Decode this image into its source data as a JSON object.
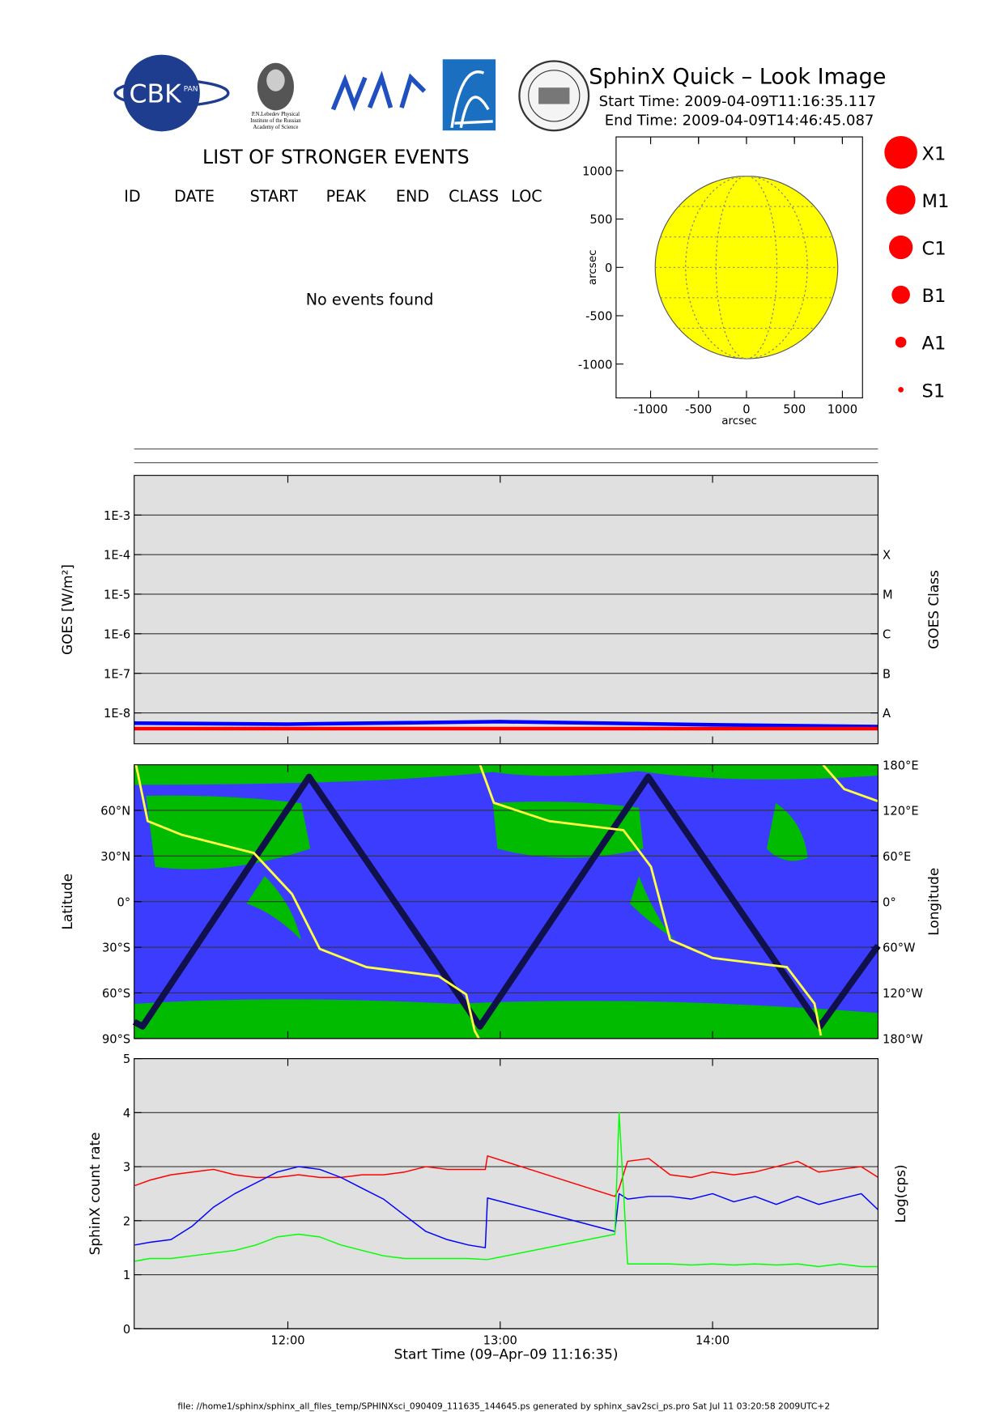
{
  "header": {
    "title": "SphinX Quick – Look Image",
    "start_time": "Start Time: 2009-04-09T11:16:35.117",
    "end_time": "End Time: 2009-04-09T14:46:45.087",
    "logo_texts": [
      "CBK",
      "PAN",
      "P.N.Lebedev Physical",
      "Institute of the Russian",
      "Academy of Science"
    ]
  },
  "events": {
    "title": "LIST OF STRONGER EVENTS",
    "columns": [
      "ID",
      "DATE",
      "START",
      "PEAK",
      "END",
      "CLASS",
      "LOC"
    ],
    "message": "No events found"
  },
  "classes": [
    "X1",
    "M1",
    "C1",
    "B1",
    "A1",
    "S1"
  ],
  "chart_data": [
    {
      "type": "disk",
      "xlim": [
        -1360,
        1210
      ],
      "ylim": [
        -1350,
        1350
      ],
      "xticks": [
        -1000,
        -500,
        0,
        500,
        1000
      ],
      "yticks": [
        -1000,
        -500,
        0,
        500,
        1000
      ],
      "xlabel": "arcsec",
      "ylabel": "arcsec",
      "radius": 952,
      "color": "#ffff00"
    },
    {
      "type": "line",
      "log_y": true,
      "background": "#e0e0e0",
      "grid": true,
      "xlim": [
        11.2764,
        14.7792
      ],
      "xticks": [
        12,
        13,
        14
      ],
      "ylim": [
        1.66e-09,
        0.01
      ],
      "yticks": [
        {
          "value": 1e-08,
          "label": "1E-8"
        },
        {
          "value": 1e-07,
          "label": "1E-7"
        },
        {
          "value": 1e-06,
          "label": "1E-6"
        },
        {
          "value": 1e-05,
          "label": "1E-5"
        },
        {
          "value": 0.0001,
          "label": "1E-4"
        },
        {
          "value": 0.001,
          "label": "1E-3"
        }
      ],
      "y2lim": [
        1.66e-09,
        0.01
      ],
      "y2ticks": [
        {
          "value": 1e-08,
          "label": "A"
        },
        {
          "value": 1e-07,
          "label": "B"
        },
        {
          "value": 1e-06,
          "label": "C"
        },
        {
          "value": 1e-05,
          "label": "M"
        },
        {
          "value": 0.0001,
          "label": "X"
        }
      ],
      "ylabel": "GOES [W/m²]",
      "y2label": "GOES Class",
      "x": [
        11.2764,
        12.0,
        13.0,
        14.0,
        14.7792
      ],
      "series": [
        {
          "color": "#0000ff",
          "values": [
            5.5e-09,
            5.2e-09,
            6e-09,
            5e-09,
            4.5e-09
          ]
        },
        {
          "color": "#ff0000",
          "values": [
            4e-09,
            4e-09,
            4e-09,
            4e-09,
            4e-09
          ]
        }
      ]
    },
    {
      "type": "line",
      "background": "#3c3cff",
      "grid": true,
      "xlim": [
        11.2764,
        14.7792
      ],
      "xticks": [
        12,
        13,
        14
      ],
      "ylim": [
        -90,
        90
      ],
      "yticks": [
        {
          "value": -90,
          "label": "90°S"
        },
        {
          "value": -60,
          "label": "60°S"
        },
        {
          "value": -30,
          "label": "30°S"
        },
        {
          "value": 0,
          "label": "0°"
        },
        {
          "value": 30,
          "label": "30°N"
        },
        {
          "value": 60,
          "label": "60°N"
        }
      ],
      "y2lim": [
        -180,
        180
      ],
      "y2ticks": [
        {
          "value": 180,
          "label": "180°E"
        },
        {
          "value": 120,
          "label": "120°E"
        },
        {
          "value": 60,
          "label": "60°E"
        },
        {
          "value": 0,
          "label": "0°"
        },
        {
          "value": -60,
          "label": "60°W"
        },
        {
          "value": -120,
          "label": "120°W"
        },
        {
          "value": -180,
          "label": "180°W"
        }
      ],
      "ylabel": "Latitude",
      "y2label": "Longitude",
      "series": [
        {
          "color": "#10104a",
          "x": [
            11.2764,
            11.316,
            12.1,
            12.905,
            13.697,
            14.506,
            14.7792
          ],
          "values": [
            -79,
            -82,
            82,
            -82,
            82,
            -82,
            -29
          ]
        },
        {
          "color": "#ffff40",
          "axis": "y2",
          "x": [
            11.2764,
            11.28,
            11.285,
            11.34,
            11.5,
            11.84,
            12.02,
            12.15,
            12.37,
            12.71,
            12.84,
            12.88,
            12.9,
            12.902,
            12.905,
            12.97,
            13.23,
            13.58,
            13.71,
            13.8,
            14.0,
            14.35,
            14.48,
            14.51,
            14.515,
            14.52,
            14.62,
            14.7792
          ],
          "values": [
            -178,
            null,
            180,
            106,
            88,
            64,
            10,
            -62,
            -86,
            -98,
            -122,
            -170,
            -180,
            null,
            180,
            130,
            106,
            94,
            46,
            -50,
            -74,
            -86,
            -134,
            -176,
            null,
            180,
            148,
            132
          ]
        }
      ]
    },
    {
      "type": "line",
      "background": "#e0e0e0",
      "grid": true,
      "xlim": [
        11.2764,
        14.7792
      ],
      "xticks": [
        {
          "value": 12,
          "label": "12:00"
        },
        {
          "value": 13,
          "label": "13:00"
        },
        {
          "value": 14,
          "label": "14:00"
        }
      ],
      "ylim": [
        0,
        5
      ],
      "yticks": [
        0,
        1,
        2,
        3,
        4,
        5
      ],
      "ylabel": "SphinX count rate",
      "y2label": "Log(cps)",
      "xlabel": "Start Time (09–Apr–09 11:16:35)",
      "x": [
        11.28,
        11.35,
        11.45,
        11.55,
        11.65,
        11.75,
        11.85,
        11.95,
        12.05,
        12.15,
        12.25,
        12.35,
        12.45,
        12.55,
        12.65,
        12.75,
        12.85,
        12.93,
        12.94,
        13.54,
        13.56,
        13.6,
        13.7,
        13.8,
        13.9,
        14.0,
        14.1,
        14.2,
        14.3,
        14.4,
        14.5,
        14.6,
        14.7,
        14.78
      ],
      "series": [
        {
          "color": "#ff0000",
          "values": [
            2.65,
            2.75,
            2.85,
            2.9,
            2.95,
            2.85,
            2.8,
            2.8,
            2.85,
            2.8,
            2.8,
            2.85,
            2.85,
            2.9,
            3.0,
            2.95,
            2.95,
            2.95,
            3.2,
            2.45,
            2.6,
            3.1,
            3.15,
            2.85,
            2.8,
            2.9,
            2.85,
            2.9,
            3.0,
            3.1,
            2.9,
            2.95,
            3.0,
            2.8
          ]
        },
        {
          "color": "#0000ff",
          "values": [
            1.55,
            1.6,
            1.65,
            1.9,
            2.25,
            2.5,
            2.7,
            2.9,
            3.0,
            2.95,
            2.8,
            2.6,
            2.4,
            2.1,
            1.8,
            1.65,
            1.55,
            1.5,
            2.42,
            1.8,
            2.5,
            2.4,
            2.45,
            2.45,
            2.4,
            2.5,
            2.35,
            2.45,
            2.3,
            2.45,
            2.3,
            2.4,
            2.5,
            2.2
          ]
        },
        {
          "color": "#00ff00",
          "values": [
            1.25,
            1.3,
            1.3,
            1.35,
            1.4,
            1.45,
            1.55,
            1.7,
            1.75,
            1.7,
            1.55,
            1.45,
            1.35,
            1.3,
            1.3,
            1.3,
            1.3,
            1.28,
            1.28,
            1.75,
            4.0,
            1.2,
            1.2,
            1.2,
            1.18,
            1.2,
            1.18,
            1.2,
            1.18,
            1.2,
            1.15,
            1.2,
            1.15,
            1.15
          ]
        }
      ]
    }
  ],
  "footer": "file: //home1/sphinx/sphinx_all_files_temp/SPHINXsci_090409_111635_144645.ps generated by sphinx_sav2sci_ps.pro Sat Jul 11 03:20:58 2009UTC+2"
}
